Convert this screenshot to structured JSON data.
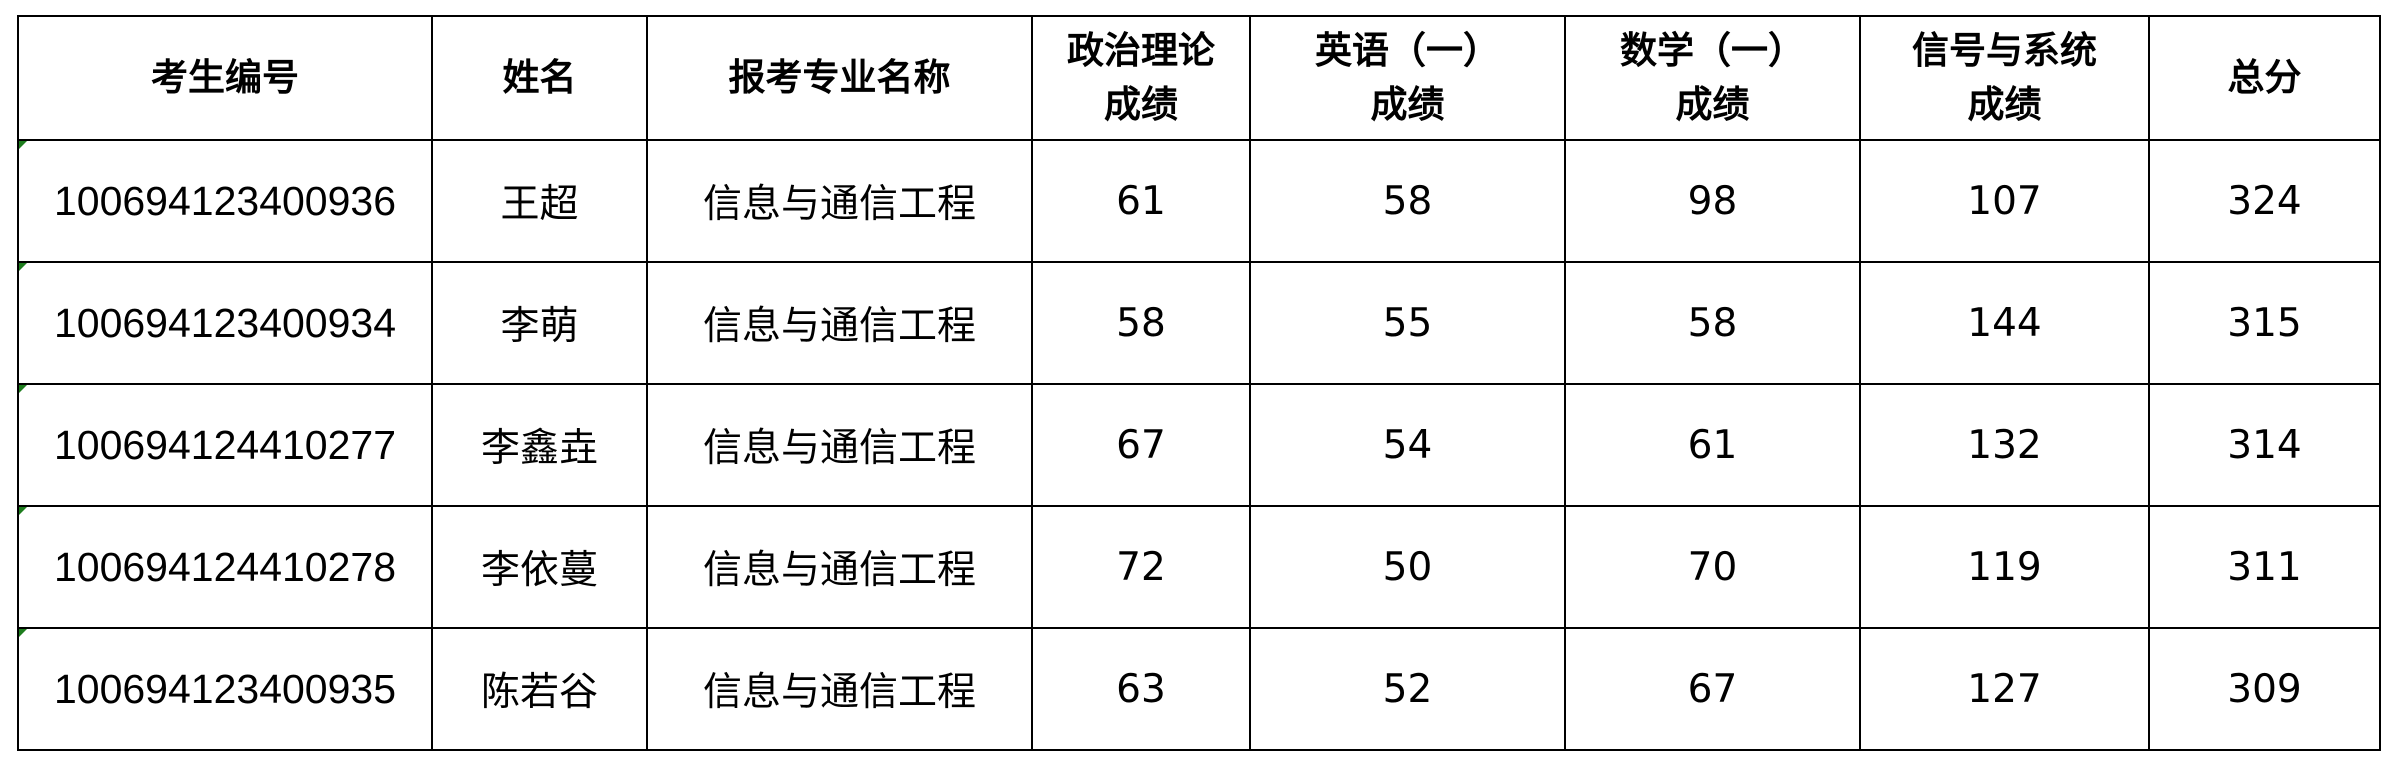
{
  "table": {
    "headers": [
      [
        "考生编号"
      ],
      [
        "姓名"
      ],
      [
        "报考专业名称"
      ],
      [
        "政治理论",
        "成绩"
      ],
      [
        "英语（一）",
        "成绩"
      ],
      [
        "数学（一）",
        "成绩"
      ],
      [
        "信号与系统",
        "成绩"
      ],
      [
        "总分"
      ]
    ],
    "rows": [
      [
        "100694123400936",
        "王超",
        "信息与通信工程",
        "61",
        "58",
        "98",
        "107",
        "324"
      ],
      [
        "100694123400934",
        "李萌",
        "信息与通信工程",
        "58",
        "55",
        "58",
        "144",
        "315"
      ],
      [
        "100694124410277",
        "李鑫垚",
        "信息与通信工程",
        "67",
        "54",
        "61",
        "132",
        "314"
      ],
      [
        "100694124410278",
        "李依蔓",
        "信息与通信工程",
        "72",
        "50",
        "70",
        "119",
        "311"
      ],
      [
        "100694123400935",
        "陈若谷",
        "信息与通信工程",
        "63",
        "52",
        "67",
        "127",
        "309"
      ]
    ]
  },
  "colors": {
    "border": "#000000",
    "text_indicator": "#1e7d1e"
  }
}
